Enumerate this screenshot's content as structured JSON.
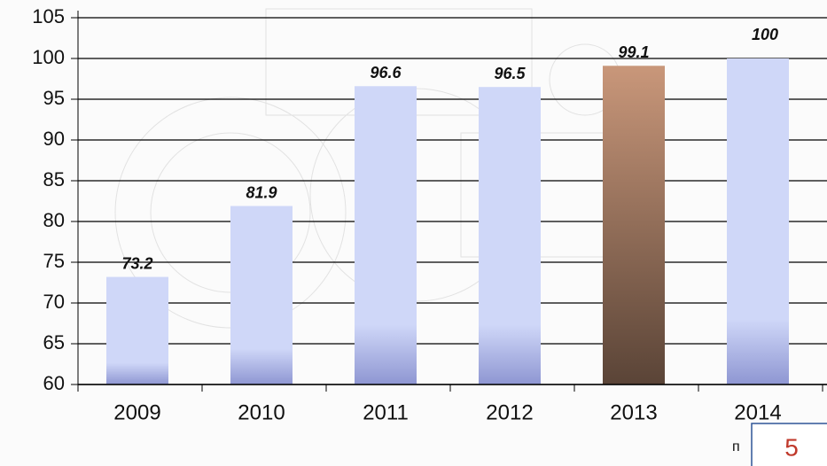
{
  "chart_data": {
    "type": "bar",
    "categories": [
      "2009",
      "2010",
      "2011",
      "2012",
      "2013",
      "2014"
    ],
    "values": [
      73.2,
      81.9,
      96.6,
      96.5,
      99.1,
      100
    ],
    "colors": [
      "#cfd7f8",
      "#cfd7f8",
      "#cfd7f8",
      "#cfd7f8",
      "#c9977a",
      "#cfd7f8"
    ],
    "ylim": [
      60,
      105
    ],
    "yticks": [
      60,
      65,
      70,
      75,
      80,
      85,
      90,
      95,
      100,
      105
    ],
    "grid": true,
    "annotations": [
      "п"
    ],
    "page_number": "5"
  }
}
